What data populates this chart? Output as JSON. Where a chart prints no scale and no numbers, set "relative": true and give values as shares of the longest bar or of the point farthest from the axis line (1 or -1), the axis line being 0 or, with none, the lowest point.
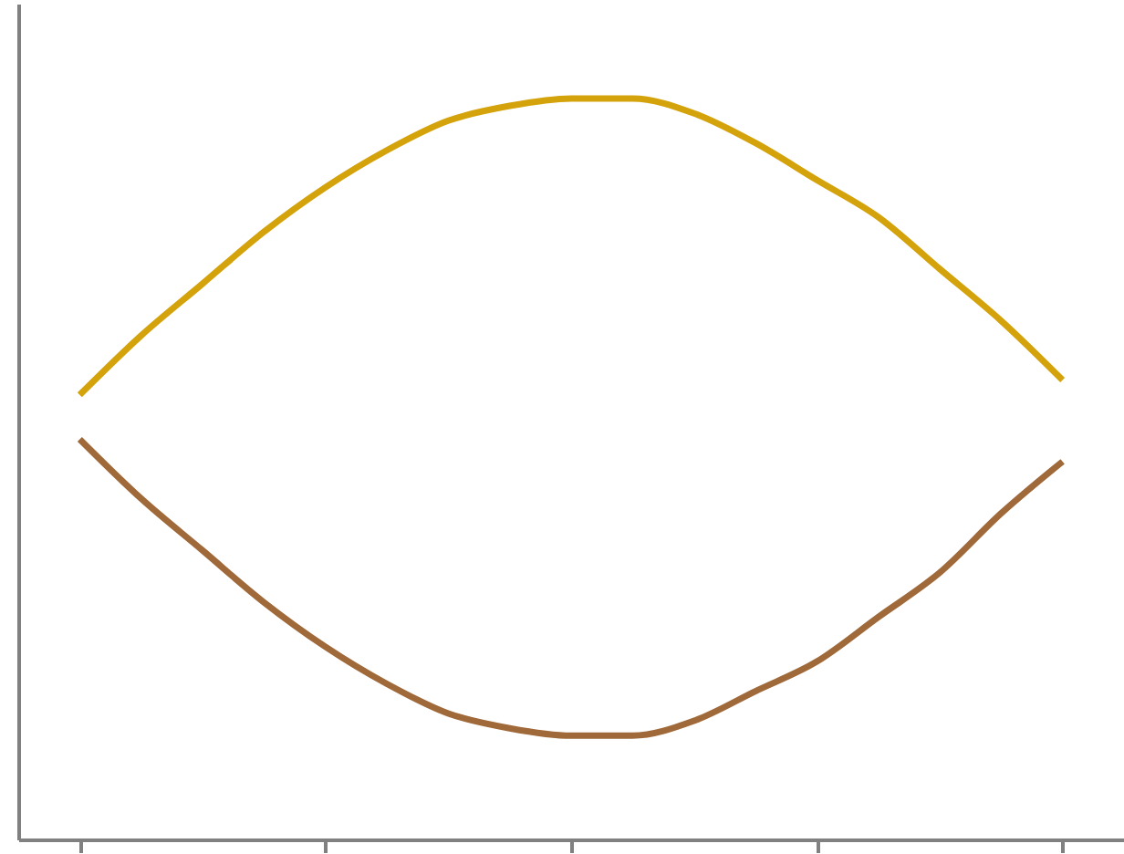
{
  "chart_data": {
    "type": "line",
    "relative": true,
    "categories": [
      null,
      null,
      null,
      null,
      null,
      null,
      null,
      null,
      null,
      null,
      null,
      null,
      null,
      null,
      null,
      null,
      null
    ],
    "series": [
      {
        "color": "#d4a20a",
        "values": [
          0.6,
          0.68,
          0.75,
          0.82,
          0.88,
          0.93,
          0.97,
          0.99,
          1.0,
          1.0,
          0.98,
          0.94,
          0.89,
          0.84,
          0.77,
          0.7,
          0.62
        ]
      },
      {
        "color": "#a0693a",
        "values": [
          0.54,
          0.46,
          0.39,
          0.32,
          0.26,
          0.21,
          0.17,
          0.15,
          0.14,
          0.14,
          0.16,
          0.2,
          0.24,
          0.3,
          0.36,
          0.44,
          0.51
        ]
      }
    ]
  }
}
